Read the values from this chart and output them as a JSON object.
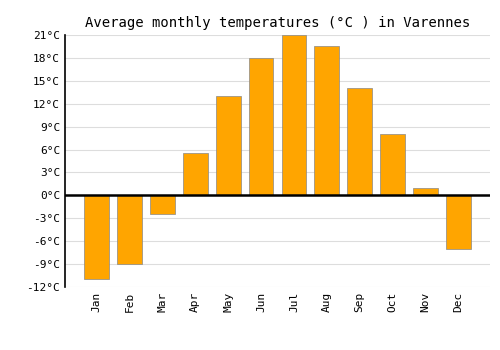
{
  "months": [
    "Jan",
    "Feb",
    "Mar",
    "Apr",
    "May",
    "Jun",
    "Jul",
    "Aug",
    "Sep",
    "Oct",
    "Nov",
    "Dec"
  ],
  "temperatures": [
    -11,
    -9,
    -2.5,
    5.5,
    13,
    18,
    21,
    19.5,
    14,
    8,
    1,
    -7
  ],
  "bar_color": "#FFA500",
  "bar_color_gradient_top": "#FFD966",
  "bar_edge_color": "#888888",
  "title": "Average monthly temperatures (°C ) in Varennes",
  "ylim": [
    -12,
    21
  ],
  "yticks": [
    -12,
    -9,
    -6,
    -3,
    0,
    3,
    6,
    9,
    12,
    15,
    18,
    21
  ],
  "background_color": "#ffffff",
  "grid_color": "#dddddd",
  "title_fontsize": 10,
  "tick_fontsize": 8,
  "font_family": "monospace"
}
